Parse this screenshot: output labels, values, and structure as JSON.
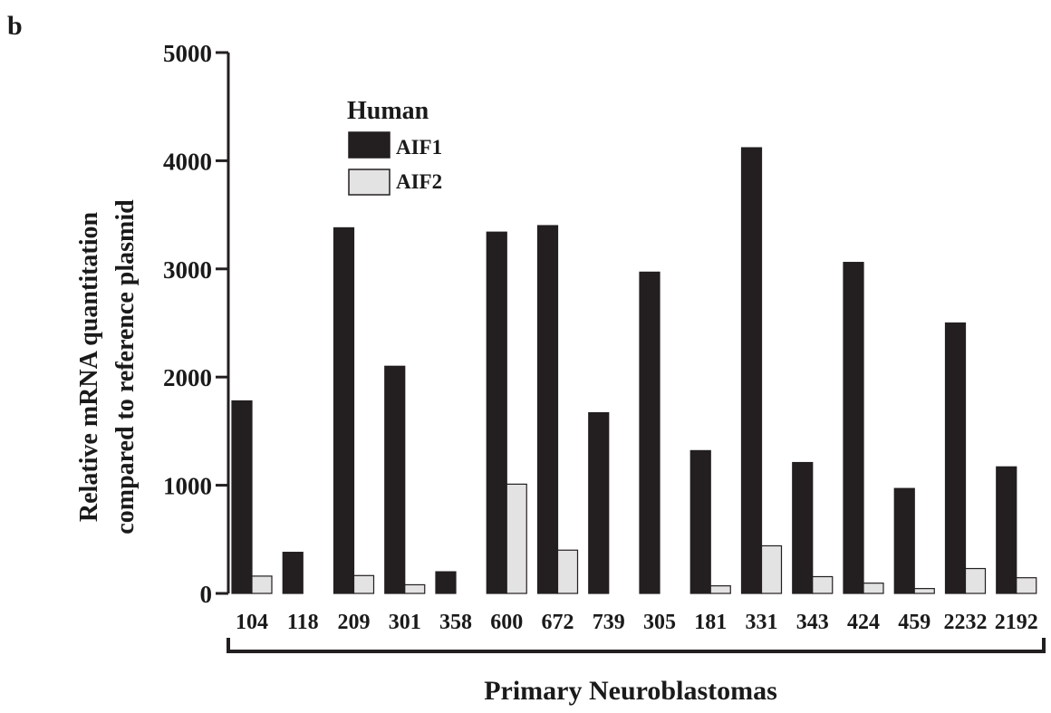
{
  "panel_label": "b",
  "chart_data": {
    "type": "bar",
    "title": "",
    "xlabel": "Primary Neuroblastomas",
    "ylabel_lines": [
      "Relative mRNA quantitation",
      "compared to reference plasmid"
    ],
    "ylim": [
      0,
      5000
    ],
    "yticks": [
      0,
      1000,
      2000,
      3000,
      4000,
      5000
    ],
    "legend_title": "Human",
    "legend_position": "top-left",
    "categories": [
      "104",
      "118",
      "209",
      "301",
      "358",
      "600",
      "672",
      "739",
      "305",
      "181",
      "331",
      "343",
      "424",
      "459",
      "2232",
      "2192"
    ],
    "series": [
      {
        "name": "AIF1",
        "color": "#231f20",
        "values": [
          1780,
          380,
          3380,
          2100,
          200,
          3340,
          3400,
          1670,
          2970,
          1320,
          4120,
          1210,
          3060,
          970,
          2500,
          1170
        ]
      },
      {
        "name": "AIF2",
        "color": "#e3e3e3",
        "values": [
          160,
          0,
          165,
          80,
          0,
          1010,
          400,
          0,
          0,
          70,
          440,
          155,
          95,
          45,
          230,
          145
        ]
      }
    ],
    "grid": false
  }
}
